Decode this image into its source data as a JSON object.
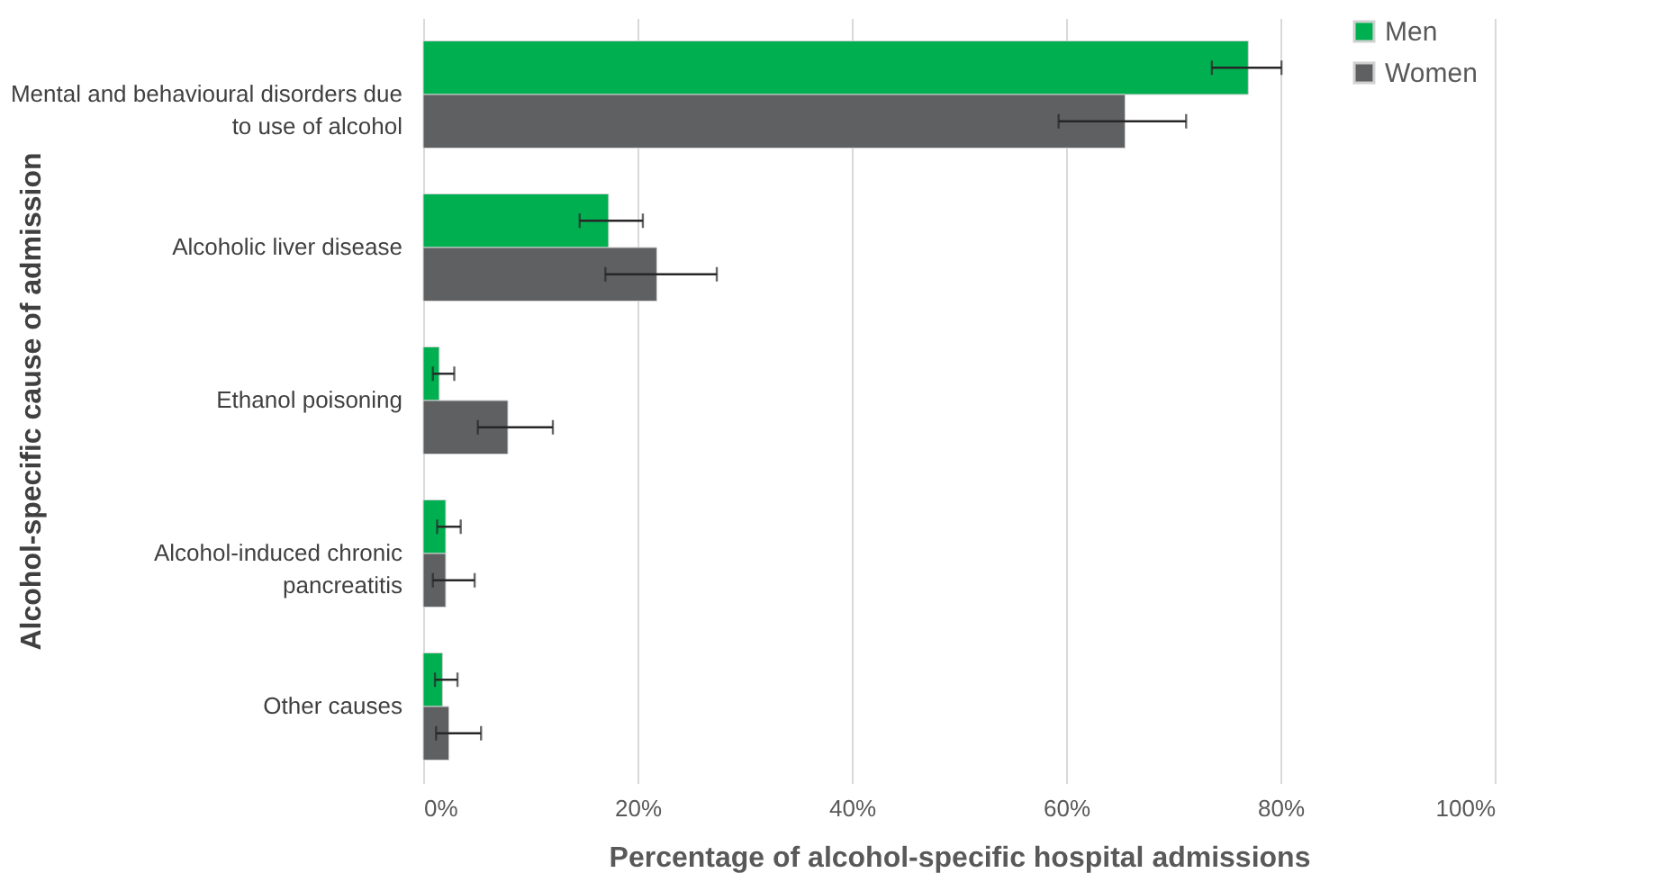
{
  "chart_data": {
    "type": "bar",
    "orientation": "horizontal",
    "xlabel": "Percentage of alcohol-specific hospital admissions",
    "ylabel": "Alcohol-specific cause of admission",
    "categories": [
      "Mental and behavioural disorders due to use of alcohol",
      "Alcoholic liver disease",
      "Ethanol poisoning",
      "Alcohol-induced chronic pancreatitis",
      "Other causes"
    ],
    "series": [
      {
        "name": "Men",
        "color": "#00b050",
        "values": [
          77.0,
          17.3,
          1.5,
          2.1,
          1.8
        ],
        "errors": [
          [
            73.6,
            80.1
          ],
          [
            14.6,
            20.5
          ],
          [
            0.9,
            2.9
          ],
          [
            1.3,
            3.5
          ],
          [
            1.1,
            3.2
          ]
        ]
      },
      {
        "name": "Women",
        "color": "#5f6062",
        "values": [
          65.5,
          21.8,
          7.9,
          2.1,
          2.4
        ],
        "errors": [
          [
            59.3,
            71.2
          ],
          [
            17.0,
            27.4
          ],
          [
            5.1,
            12.1
          ],
          [
            0.9,
            4.8
          ],
          [
            1.2,
            5.4
          ]
        ]
      }
    ],
    "xlim": [
      0,
      100
    ],
    "xticks": [
      {
        "value": 0,
        "label": "0%"
      },
      {
        "value": 20,
        "label": "20%"
      },
      {
        "value": 40,
        "label": "40%"
      },
      {
        "value": 60,
        "label": "60%"
      },
      {
        "value": 80,
        "label": "80%"
      },
      {
        "value": 100,
        "label": "100%"
      }
    ],
    "grid": "x",
    "legend": "top right"
  }
}
